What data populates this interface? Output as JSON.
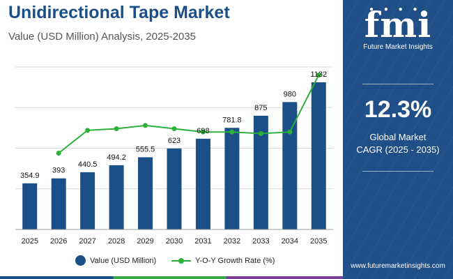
{
  "chart_data": {
    "type": "bar",
    "title": "Unidirectional Tape Market",
    "subtitle": "Value (USD Million) Analysis, 2025-2035",
    "categories": [
      "2025",
      "2026",
      "2027",
      "2028",
      "2029",
      "2030",
      "2031",
      "2032",
      "2033",
      "2034",
      "2035"
    ],
    "series": [
      {
        "name": "Value (USD Million)",
        "kind": "bar",
        "color": "#1b4f87",
        "values": [
          354.9,
          393,
          440.5,
          494.2,
          555.5,
          623,
          698,
          781.8,
          875,
          980,
          1132
        ],
        "labels": [
          "354.9",
          "393",
          "440.5",
          "494.2",
          "555.5",
          "623",
          "698",
          "781.8",
          "875",
          "980",
          "1132"
        ]
      },
      {
        "name": "Y-O-Y Growth Rate (%)",
        "kind": "line",
        "color": "#2bb13a",
        "values": [
          null,
          10.7,
          12.1,
          12.2,
          12.4,
          12.2,
          12.0,
          12.0,
          11.9,
          12.0,
          15.5
        ]
      }
    ],
    "ylim": [
      0,
      1250
    ],
    "y2lim": [
      6,
      16
    ],
    "grid": true,
    "legend": "bottom"
  },
  "legend": {
    "bar_label": "Value (USD Million)",
    "line_label": "Y-O-Y Growth Rate (%)"
  },
  "panel": {
    "logo": "fmi",
    "logo_caption": "Future Market Insights",
    "cagr_value": "12.3%",
    "cagr_label_1": "Global Market",
    "cagr_label_2": "CAGR (2025 - 2035)",
    "website": "www.futuremarketinsights.com"
  },
  "colors": {
    "primary": "#1b4f87",
    "accent_green": "#2bb13a",
    "panel_bg": "#1f4f86"
  }
}
